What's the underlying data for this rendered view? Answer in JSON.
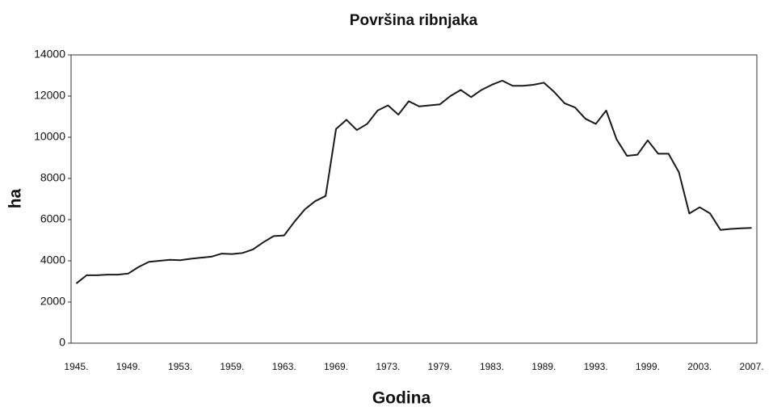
{
  "chart_data": {
    "type": "line",
    "title": "Površina ribnjaka",
    "xlabel": "Godina",
    "ylabel": "ha",
    "categories": [
      "1945.",
      null,
      null,
      null,
      null,
      "1949.",
      null,
      null,
      null,
      null,
      "1953.",
      null,
      null,
      null,
      null,
      "1959.",
      null,
      null,
      null,
      null,
      "1963.",
      null,
      null,
      null,
      null,
      "1969.",
      null,
      null,
      null,
      null,
      "1973.",
      null,
      null,
      null,
      null,
      "1979.",
      null,
      null,
      null,
      null,
      "1983.",
      null,
      null,
      null,
      null,
      "1989.",
      null,
      null,
      null,
      null,
      "1993.",
      null,
      null,
      null,
      null,
      "1999.",
      null,
      null,
      null,
      null,
      "2003.",
      null,
      null,
      null,
      null,
      "2007."
    ],
    "values": [
      2900,
      3300,
      3300,
      3330,
      3330,
      3380,
      3700,
      3950,
      4000,
      4050,
      4030,
      4100,
      4150,
      4200,
      4350,
      4330,
      4380,
      4550,
      4900,
      5200,
      5230,
      5900,
      6500,
      6900,
      7150,
      10400,
      10850,
      10350,
      10650,
      11300,
      11550,
      11100,
      11750,
      11500,
      11550,
      11600,
      12000,
      12300,
      11950,
      12300,
      12550,
      12750,
      12500,
      12500,
      12550,
      12650,
      12200,
      11650,
      11450,
      10900,
      10650,
      11300,
      9900,
      9100,
      9150,
      9850,
      9200,
      9200,
      8300,
      6300,
      6600,
      6300,
      5500,
      5550,
      5580,
      5600
    ],
    "color": "#1a1a1a",
    "ylim": [
      0,
      14000
    ],
    "yticks": [
      0,
      2000,
      4000,
      6000,
      8000,
      10000,
      12000,
      14000
    ],
    "grid": false
  }
}
